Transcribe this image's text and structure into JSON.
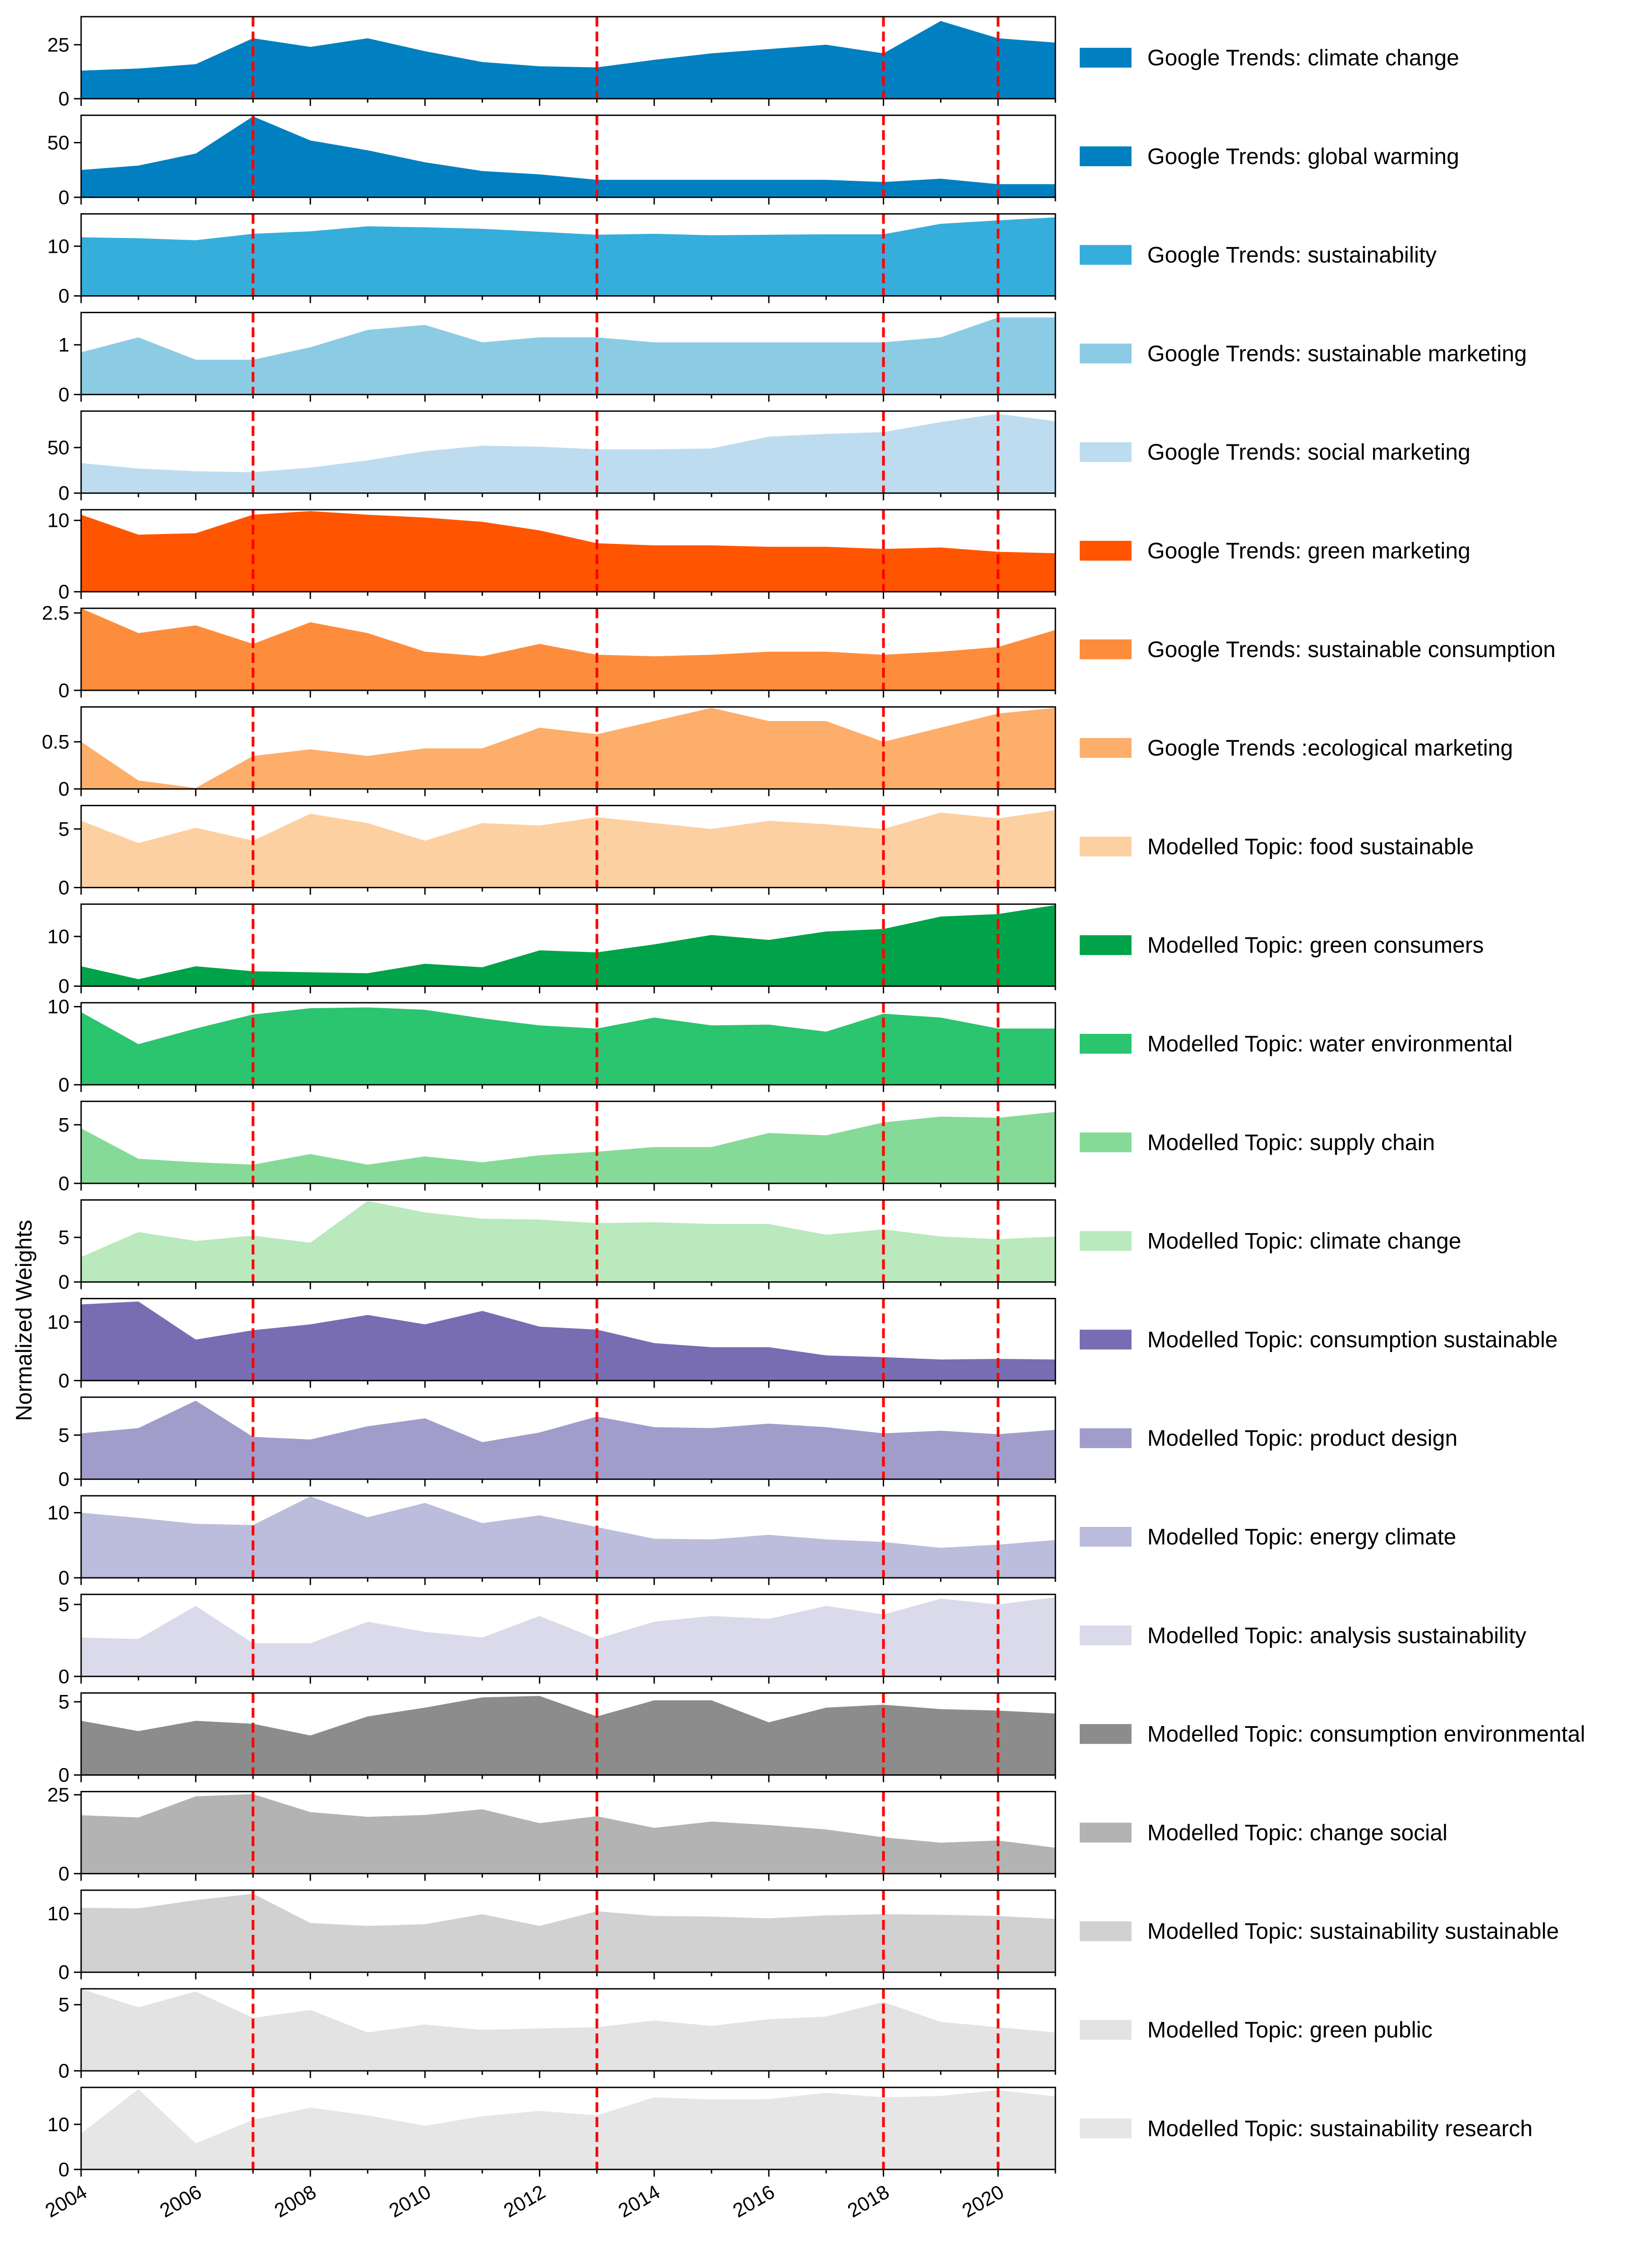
{
  "chart_data": {
    "type": "area",
    "ylabel": "Normalized Weights",
    "x": [
      2004,
      2005,
      2006,
      2007,
      2008,
      2009,
      2010,
      2011,
      2012,
      2013,
      2014,
      2015,
      2016,
      2017,
      2018,
      2019,
      2020,
      2021
    ],
    "xlim": [
      2004,
      2021
    ],
    "xticks": [
      2004,
      2006,
      2008,
      2010,
      2012,
      2014,
      2016,
      2018,
      2020
    ],
    "vlines": [
      2007,
      2013,
      2018,
      2020
    ],
    "vline_color": "#ff0000",
    "series": [
      {
        "name": "Google Trends: climate change",
        "color": "#0080c0",
        "ylim": [
          0,
          38
        ],
        "yticks": [
          0,
          25
        ],
        "values": [
          13,
          14,
          16,
          28,
          24,
          28,
          22,
          17,
          15,
          14.5,
          18,
          21,
          23,
          25,
          21,
          36,
          28,
          26
        ]
      },
      {
        "name": "Google Trends: global warming",
        "color": "#0080c0",
        "ylim": [
          0,
          75
        ],
        "yticks": [
          0,
          50
        ],
        "values": [
          25,
          29,
          40,
          74,
          52,
          43,
          32,
          24,
          21,
          16,
          16,
          16,
          16,
          16,
          14,
          17,
          12,
          12
        ]
      },
      {
        "name": "Google Trends: sustainability",
        "color": "#35aedc",
        "ylim": [
          0,
          16.5
        ],
        "yticks": [
          0,
          10
        ],
        "values": [
          11.8,
          11.6,
          11.2,
          12.5,
          13,
          14,
          13.8,
          13.5,
          12.9,
          12.3,
          12.5,
          12.2,
          12.3,
          12.4,
          12.4,
          14.5,
          15.2,
          15.8
        ]
      },
      {
        "name": "Google Trends: sustainable marketing",
        "color": "#8ccbe4",
        "ylim": [
          0,
          1.65
        ],
        "yticks": [
          0,
          1
        ],
        "values": [
          0.85,
          1.15,
          0.7,
          0.7,
          0.95,
          1.3,
          1.4,
          1.05,
          1.15,
          1.15,
          1.05,
          1.05,
          1.05,
          1.05,
          1.05,
          1.15,
          1.55,
          1.55
        ]
      },
      {
        "name": "Google Trends: social marketing",
        "color": "#bedcf0",
        "ylim": [
          0,
          90
        ],
        "yticks": [
          0,
          50
        ],
        "values": [
          33,
          27,
          24,
          23,
          28,
          36,
          46,
          52,
          51,
          48,
          48,
          49,
          62,
          65,
          67,
          78,
          87,
          79
        ]
      },
      {
        "name": "Google Trends: green marketing",
        "color": "#ff5500",
        "ylim": [
          0,
          11.5
        ],
        "yticks": [
          0,
          10
        ],
        "values": [
          10.8,
          8,
          8.2,
          10.8,
          11.3,
          10.8,
          10.4,
          9.8,
          8.6,
          6.8,
          6.5,
          6.5,
          6.3,
          6.3,
          6,
          6.2,
          5.6,
          5.4
        ]
      },
      {
        "name": "Google Trends: sustainable consumption",
        "color": "#fd8d3c",
        "ylim": [
          0,
          2.65
        ],
        "yticks": [
          0.0,
          2.5
        ],
        "values": [
          2.65,
          1.85,
          2.1,
          1.5,
          2.2,
          1.85,
          1.25,
          1.1,
          1.5,
          1.15,
          1.1,
          1.15,
          1.25,
          1.25,
          1.15,
          1.25,
          1.4,
          1.95
        ]
      },
      {
        "name": "Google Trends :ecological marketing",
        "color": "#fdae6b",
        "ylim": [
          0,
          0.87
        ],
        "yticks": [
          0.0,
          0.5
        ],
        "values": [
          0.5,
          0.09,
          0.01,
          0.35,
          0.42,
          0.35,
          0.43,
          0.43,
          0.65,
          0.58,
          0.72,
          0.86,
          0.72,
          0.72,
          0.5,
          0.65,
          0.8,
          0.86
        ]
      },
      {
        "name": "Modelled Topic: food sustainable",
        "color": "#fdd0a2",
        "ylim": [
          0,
          7
        ],
        "yticks": [
          0,
          5
        ],
        "values": [
          5.7,
          3.8,
          5.1,
          4,
          6.3,
          5.5,
          4,
          5.5,
          5.3,
          6,
          5.5,
          5,
          5.7,
          5.4,
          5,
          6.4,
          5.9,
          6.6
        ]
      },
      {
        "name": "Modelled Topic: green consumers",
        "color": "#00a349",
        "ylim": [
          0,
          16.5
        ],
        "yticks": [
          0,
          10
        ],
        "values": [
          4,
          1.4,
          4,
          3,
          2.8,
          2.6,
          4.5,
          3.8,
          7.2,
          6.8,
          8.4,
          10.3,
          9.3,
          11,
          11.5,
          14,
          14.5,
          16.3
        ]
      },
      {
        "name": "Modelled Topic: water environmental",
        "color": "#2bc46f",
        "ylim": [
          0,
          10.5
        ],
        "yticks": [
          0,
          10
        ],
        "values": [
          9.3,
          5.2,
          7.2,
          9,
          9.8,
          9.9,
          9.6,
          8.5,
          7.6,
          7.2,
          8.6,
          7.6,
          7.7,
          6.8,
          9.1,
          8.6,
          7.2,
          7.2
        ]
      },
      {
        "name": "Modelled Topic: supply chain",
        "color": "#86da97",
        "ylim": [
          0,
          7
        ],
        "yticks": [
          0,
          5
        ],
        "values": [
          4.7,
          2.1,
          1.8,
          1.6,
          2.5,
          1.6,
          2.3,
          1.8,
          2.4,
          2.7,
          3.1,
          3.1,
          4.3,
          4.1,
          5.2,
          5.7,
          5.6,
          6.1
        ]
      },
      {
        "name": "Modelled Topic: climate change",
        "color": "#b9e9bd",
        "ylim": [
          0,
          9.2
        ],
        "yticks": [
          0,
          5
        ],
        "values": [
          2.8,
          5.6,
          4.6,
          5.2,
          4.4,
          9.1,
          7.8,
          7.1,
          7,
          6.6,
          6.7,
          6.5,
          6.5,
          5.3,
          5.9,
          5.1,
          4.8,
          5.1
        ]
      },
      {
        "name": "Modelled Topic: consumption sustainable",
        "color": "#786db3",
        "ylim": [
          0,
          14
        ],
        "yticks": [
          0,
          10
        ],
        "values": [
          13,
          13.5,
          7,
          8.6,
          9.6,
          11.2,
          9.6,
          11.9,
          9.2,
          8.7,
          6.4,
          5.7,
          5.7,
          4.3,
          4,
          3.6,
          3.7,
          3.6
        ]
      },
      {
        "name": "Modelled Topic: product design",
        "color": "#a19dcb",
        "ylim": [
          0,
          9.3
        ],
        "yticks": [
          0,
          5
        ],
        "values": [
          5.2,
          5.8,
          8.9,
          4.8,
          4.5,
          6,
          6.9,
          4.2,
          5.3,
          7.1,
          5.9,
          5.8,
          6.3,
          5.9,
          5.2,
          5.5,
          5.1,
          5.6
        ]
      },
      {
        "name": "Modelled Topic: energy climate",
        "color": "#bcbddc",
        "ylim": [
          0,
          12.6
        ],
        "yticks": [
          0,
          10
        ],
        "values": [
          10,
          9.2,
          8.3,
          8.1,
          12.5,
          9.3,
          11.5,
          8.4,
          9.6,
          7.8,
          6,
          5.9,
          6.6,
          5.9,
          5.5,
          4.6,
          5.1,
          5.8
        ]
      },
      {
        "name": "Modelled Topic: analysis sustainability",
        "color": "#dadaeb",
        "ylim": [
          0,
          5.7
        ],
        "yticks": [
          0,
          5
        ],
        "values": [
          2.7,
          2.6,
          4.9,
          2.3,
          2.3,
          3.8,
          3.1,
          2.7,
          4.2,
          2.6,
          3.8,
          4.2,
          4,
          4.9,
          4.3,
          5.4,
          5,
          5.5
        ]
      },
      {
        "name": "Modelled Topic: consumption environmental",
        "color": "#8c8c8c",
        "ylim": [
          0,
          5.6
        ],
        "yticks": [
          0,
          5
        ],
        "values": [
          3.7,
          3,
          3.7,
          3.5,
          2.7,
          4,
          4.6,
          5.3,
          5.4,
          4,
          5.1,
          5.1,
          3.6,
          4.6,
          4.8,
          4.5,
          4.4,
          4.2
        ]
      },
      {
        "name": "Modelled Topic: change social",
        "color": "#b3b3b3",
        "ylim": [
          0,
          26
        ],
        "yticks": [
          0,
          25
        ],
        "values": [
          18.5,
          17.8,
          24.5,
          25.2,
          19.5,
          18,
          18.6,
          20.4,
          16,
          18.2,
          14.5,
          16.5,
          15.4,
          14,
          11.5,
          9.8,
          10.5,
          8.2
        ]
      },
      {
        "name": "Modelled Topic: sustainability sustainable",
        "color": "#d1d1d1",
        "ylim": [
          0,
          14
        ],
        "yticks": [
          0,
          10
        ],
        "values": [
          11,
          10.9,
          12.3,
          13.4,
          8.4,
          7.9,
          8.2,
          9.9,
          7.9,
          10.4,
          9.6,
          9.5,
          9.2,
          9.7,
          9.9,
          9.8,
          9.6,
          9.1
        ]
      },
      {
        "name": "Modelled Topic: green public",
        "color": "#e3e3e3",
        "ylim": [
          0,
          6.2
        ],
        "yticks": [
          0,
          5
        ],
        "values": [
          6.2,
          4.8,
          6,
          4,
          4.6,
          2.9,
          3.5,
          3.1,
          3.2,
          3.3,
          3.8,
          3.4,
          3.9,
          4.1,
          5.2,
          3.7,
          3.3,
          2.9
        ]
      },
      {
        "name": "Modelled Topic: sustainability research",
        "color": "#e6e6e6",
        "ylim": [
          0,
          18.2
        ],
        "yticks": [
          0,
          10
        ],
        "values": [
          8,
          17.8,
          5.8,
          11,
          13.7,
          12,
          9.7,
          11.8,
          13,
          12,
          16,
          15.5,
          15.6,
          17,
          16,
          16.3,
          17.6,
          16.2
        ]
      }
    ]
  }
}
